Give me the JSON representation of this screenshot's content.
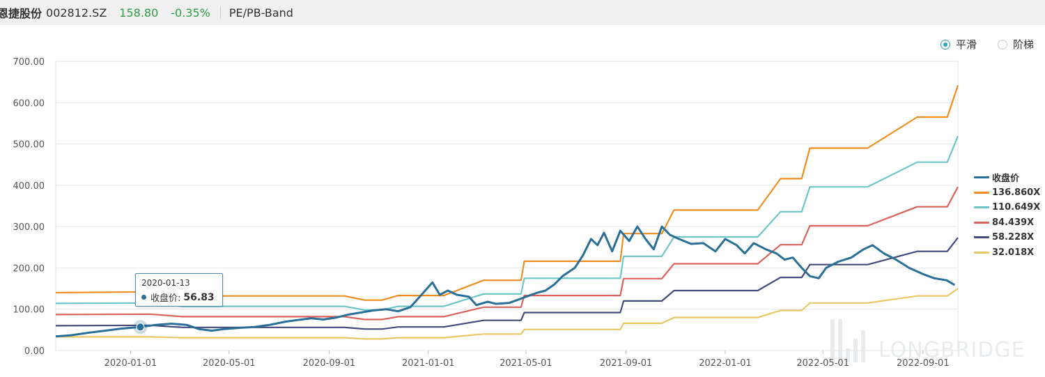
{
  "header": {
    "stock_name": "恩捷股份",
    "code": "002812.SZ",
    "price": "158.80",
    "change": "-0.35%",
    "tab": "PE/PB-Band"
  },
  "modes": [
    {
      "label": "平滑",
      "selected": true
    },
    {
      "label": "阶梯",
      "selected": false
    }
  ],
  "tooltip": {
    "date": "2020-01-13",
    "label": "收盘价:",
    "value": "56.83"
  },
  "watermark": "LONGBRIDGE",
  "colors": {
    "close": "#2a6f97",
    "pe136": "#ed8d22",
    "pe110": "#6cc5c7",
    "pe84": "#d9625a",
    "pe58": "#444b7c",
    "pe32": "#e9c766",
    "price_up": "#2e9c45"
  },
  "chart_data": {
    "type": "line",
    "x_ticks": [
      "2020-01-01",
      "2020-05-01",
      "2020-09-01",
      "2021-01-01",
      "2021-05-01",
      "2021-09-01",
      "2022-01-01",
      "2022-05-01",
      "2022-09-01"
    ],
    "y_ticks": [
      "0.00",
      "100.00",
      "200.00",
      "300.00",
      "400.00",
      "500.00",
      "600.00",
      "700.00"
    ],
    "ylim": [
      0,
      700
    ],
    "xlim": [
      "2019-10-01",
      "2022-10-14"
    ],
    "grid": true,
    "legend_position": "right",
    "series": [
      {
        "name": "收盘价",
        "key": "close",
        "points": [
          [
            "2019-10-01",
            34
          ],
          [
            "2019-10-20",
            37
          ],
          [
            "2019-11-10",
            43
          ],
          [
            "2019-12-01",
            48
          ],
          [
            "2019-12-20",
            53
          ],
          [
            "2020-01-13",
            56.83
          ],
          [
            "2020-02-01",
            62
          ],
          [
            "2020-02-20",
            65
          ],
          [
            "2020-03-10",
            62
          ],
          [
            "2020-03-25",
            52
          ],
          [
            "2020-04-10",
            48
          ],
          [
            "2020-04-25",
            52
          ],
          [
            "2020-05-15",
            55
          ],
          [
            "2020-06-01",
            57
          ],
          [
            "2020-06-20",
            62
          ],
          [
            "2020-07-10",
            70
          ],
          [
            "2020-07-25",
            74
          ],
          [
            "2020-08-10",
            78
          ],
          [
            "2020-08-25",
            75
          ],
          [
            "2020-09-10",
            80
          ],
          [
            "2020-09-25",
            87
          ],
          [
            "2020-10-10",
            92
          ],
          [
            "2020-10-25",
            97
          ],
          [
            "2020-11-10",
            100
          ],
          [
            "2020-11-25",
            95
          ],
          [
            "2020-12-10",
            105
          ],
          [
            "2020-12-25",
            138
          ],
          [
            "2021-01-06",
            165
          ],
          [
            "2021-01-15",
            135
          ],
          [
            "2021-01-25",
            145
          ],
          [
            "2021-02-05",
            135
          ],
          [
            "2021-02-20",
            130
          ],
          [
            "2021-03-01",
            110
          ],
          [
            "2021-03-15",
            118
          ],
          [
            "2021-03-25",
            113
          ],
          [
            "2021-04-10",
            115
          ],
          [
            "2021-04-20",
            122
          ],
          [
            "2021-05-01",
            130
          ],
          [
            "2021-05-15",
            140
          ],
          [
            "2021-05-25",
            145
          ],
          [
            "2021-06-05",
            160
          ],
          [
            "2021-06-15",
            180
          ],
          [
            "2021-06-30",
            200
          ],
          [
            "2021-07-10",
            230
          ],
          [
            "2021-07-20",
            270
          ],
          [
            "2021-07-28",
            255
          ],
          [
            "2021-08-05",
            285
          ],
          [
            "2021-08-15",
            240
          ],
          [
            "2021-08-25",
            290
          ],
          [
            "2021-09-05",
            265
          ],
          [
            "2021-09-15",
            300
          ],
          [
            "2021-09-25",
            270
          ],
          [
            "2021-10-05",
            245
          ],
          [
            "2021-10-15",
            300
          ],
          [
            "2021-10-25",
            280
          ],
          [
            "2021-11-05",
            270
          ],
          [
            "2021-11-20",
            258
          ],
          [
            "2021-12-05",
            260
          ],
          [
            "2021-12-20",
            240
          ],
          [
            "2022-01-01",
            270
          ],
          [
            "2022-01-15",
            255
          ],
          [
            "2022-01-25",
            235
          ],
          [
            "2022-02-05",
            260
          ],
          [
            "2022-02-20",
            245
          ],
          [
            "2022-03-05",
            235
          ],
          [
            "2022-03-15",
            220
          ],
          [
            "2022-03-25",
            225
          ],
          [
            "2022-04-05",
            200
          ],
          [
            "2022-04-15",
            180
          ],
          [
            "2022-04-26",
            175
          ],
          [
            "2022-05-05",
            200
          ],
          [
            "2022-05-20",
            215
          ],
          [
            "2022-06-05",
            225
          ],
          [
            "2022-06-20",
            245
          ],
          [
            "2022-07-01",
            255
          ],
          [
            "2022-07-15",
            235
          ],
          [
            "2022-07-30",
            220
          ],
          [
            "2022-08-15",
            200
          ],
          [
            "2022-09-01",
            185
          ],
          [
            "2022-09-15",
            175
          ],
          [
            "2022-09-30",
            170
          ],
          [
            "2022-10-10",
            158.8
          ]
        ]
      },
      {
        "name": "136.860X",
        "key": "pe136",
        "points": [
          [
            "2019-10-01",
            140
          ],
          [
            "2020-01-25",
            142
          ],
          [
            "2020-03-05",
            132
          ],
          [
            "2020-09-20",
            132
          ],
          [
            "2020-10-15",
            122
          ],
          [
            "2020-11-05",
            122
          ],
          [
            "2020-11-25",
            133
          ],
          [
            "2021-01-20",
            133
          ],
          [
            "2021-03-10",
            170
          ],
          [
            "2021-04-25",
            170
          ],
          [
            "2021-04-29",
            216
          ],
          [
            "2021-08-25",
            216
          ],
          [
            "2021-08-29",
            283
          ],
          [
            "2021-10-15",
            283
          ],
          [
            "2021-10-30",
            340
          ],
          [
            "2022-02-10",
            340
          ],
          [
            "2022-03-10",
            416
          ],
          [
            "2022-04-05",
            416
          ],
          [
            "2022-04-15",
            490
          ],
          [
            "2022-06-25",
            490
          ],
          [
            "2022-08-25",
            565
          ],
          [
            "2022-10-01",
            565
          ],
          [
            "2022-10-14",
            642
          ]
        ]
      },
      {
        "name": "110.649X",
        "key": "pe110",
        "points": [
          [
            "2019-10-01",
            114
          ],
          [
            "2020-01-25",
            115
          ],
          [
            "2020-03-05",
            107
          ],
          [
            "2020-09-20",
            107
          ],
          [
            "2020-10-15",
            98
          ],
          [
            "2020-11-05",
            98
          ],
          [
            "2020-11-25",
            107
          ],
          [
            "2021-01-20",
            107
          ],
          [
            "2021-03-10",
            137
          ],
          [
            "2021-04-25",
            137
          ],
          [
            "2021-04-29",
            175
          ],
          [
            "2021-08-25",
            175
          ],
          [
            "2021-08-29",
            228
          ],
          [
            "2021-10-15",
            228
          ],
          [
            "2021-10-30",
            275
          ],
          [
            "2022-02-10",
            275
          ],
          [
            "2022-03-10",
            336
          ],
          [
            "2022-04-05",
            336
          ],
          [
            "2022-04-15",
            396
          ],
          [
            "2022-06-25",
            396
          ],
          [
            "2022-08-25",
            456
          ],
          [
            "2022-10-01",
            456
          ],
          [
            "2022-10-14",
            519
          ]
        ]
      },
      {
        "name": "84.439X",
        "key": "pe84",
        "points": [
          [
            "2019-10-01",
            87
          ],
          [
            "2020-01-25",
            88
          ],
          [
            "2020-03-05",
            82
          ],
          [
            "2020-09-20",
            82
          ],
          [
            "2020-10-15",
            75
          ],
          [
            "2020-11-05",
            75
          ],
          [
            "2020-11-25",
            82
          ],
          [
            "2021-01-20",
            82
          ],
          [
            "2021-03-10",
            105
          ],
          [
            "2021-04-25",
            105
          ],
          [
            "2021-04-29",
            133
          ],
          [
            "2021-08-25",
            133
          ],
          [
            "2021-08-29",
            174
          ],
          [
            "2021-10-15",
            174
          ],
          [
            "2021-10-30",
            210
          ],
          [
            "2022-02-10",
            210
          ],
          [
            "2022-03-10",
            256
          ],
          [
            "2022-04-05",
            256
          ],
          [
            "2022-04-15",
            302
          ],
          [
            "2022-06-25",
            302
          ],
          [
            "2022-08-25",
            348
          ],
          [
            "2022-10-01",
            348
          ],
          [
            "2022-10-14",
            396
          ]
        ]
      },
      {
        "name": "58.228X",
        "key": "pe58",
        "points": [
          [
            "2019-10-01",
            60
          ],
          [
            "2020-01-25",
            61
          ],
          [
            "2020-03-05",
            56
          ],
          [
            "2020-09-20",
            56
          ],
          [
            "2020-10-15",
            52
          ],
          [
            "2020-11-05",
            52
          ],
          [
            "2020-11-25",
            57
          ],
          [
            "2021-01-20",
            57
          ],
          [
            "2021-03-10",
            73
          ],
          [
            "2021-04-25",
            73
          ],
          [
            "2021-04-29",
            92
          ],
          [
            "2021-08-25",
            92
          ],
          [
            "2021-08-29",
            120
          ],
          [
            "2021-10-15",
            120
          ],
          [
            "2021-10-30",
            145
          ],
          [
            "2022-02-10",
            145
          ],
          [
            "2022-03-10",
            177
          ],
          [
            "2022-04-05",
            177
          ],
          [
            "2022-04-15",
            208
          ],
          [
            "2022-06-25",
            208
          ],
          [
            "2022-08-25",
            240
          ],
          [
            "2022-10-01",
            240
          ],
          [
            "2022-10-14",
            273
          ]
        ]
      },
      {
        "name": "32.018X",
        "key": "pe32",
        "points": [
          [
            "2019-10-01",
            33
          ],
          [
            "2020-01-25",
            33
          ],
          [
            "2020-03-05",
            31
          ],
          [
            "2020-09-20",
            31
          ],
          [
            "2020-10-15",
            28
          ],
          [
            "2020-11-05",
            28
          ],
          [
            "2020-11-25",
            31
          ],
          [
            "2021-01-20",
            31
          ],
          [
            "2021-03-10",
            40
          ],
          [
            "2021-04-25",
            40
          ],
          [
            "2021-04-29",
            51
          ],
          [
            "2021-08-25",
            51
          ],
          [
            "2021-08-29",
            66
          ],
          [
            "2021-10-15",
            66
          ],
          [
            "2021-10-30",
            80
          ],
          [
            "2022-02-10",
            80
          ],
          [
            "2022-03-10",
            97
          ],
          [
            "2022-04-05",
            97
          ],
          [
            "2022-04-15",
            115
          ],
          [
            "2022-06-25",
            115
          ],
          [
            "2022-08-25",
            132
          ],
          [
            "2022-10-01",
            132
          ],
          [
            "2022-10-14",
            150
          ]
        ]
      }
    ]
  }
}
